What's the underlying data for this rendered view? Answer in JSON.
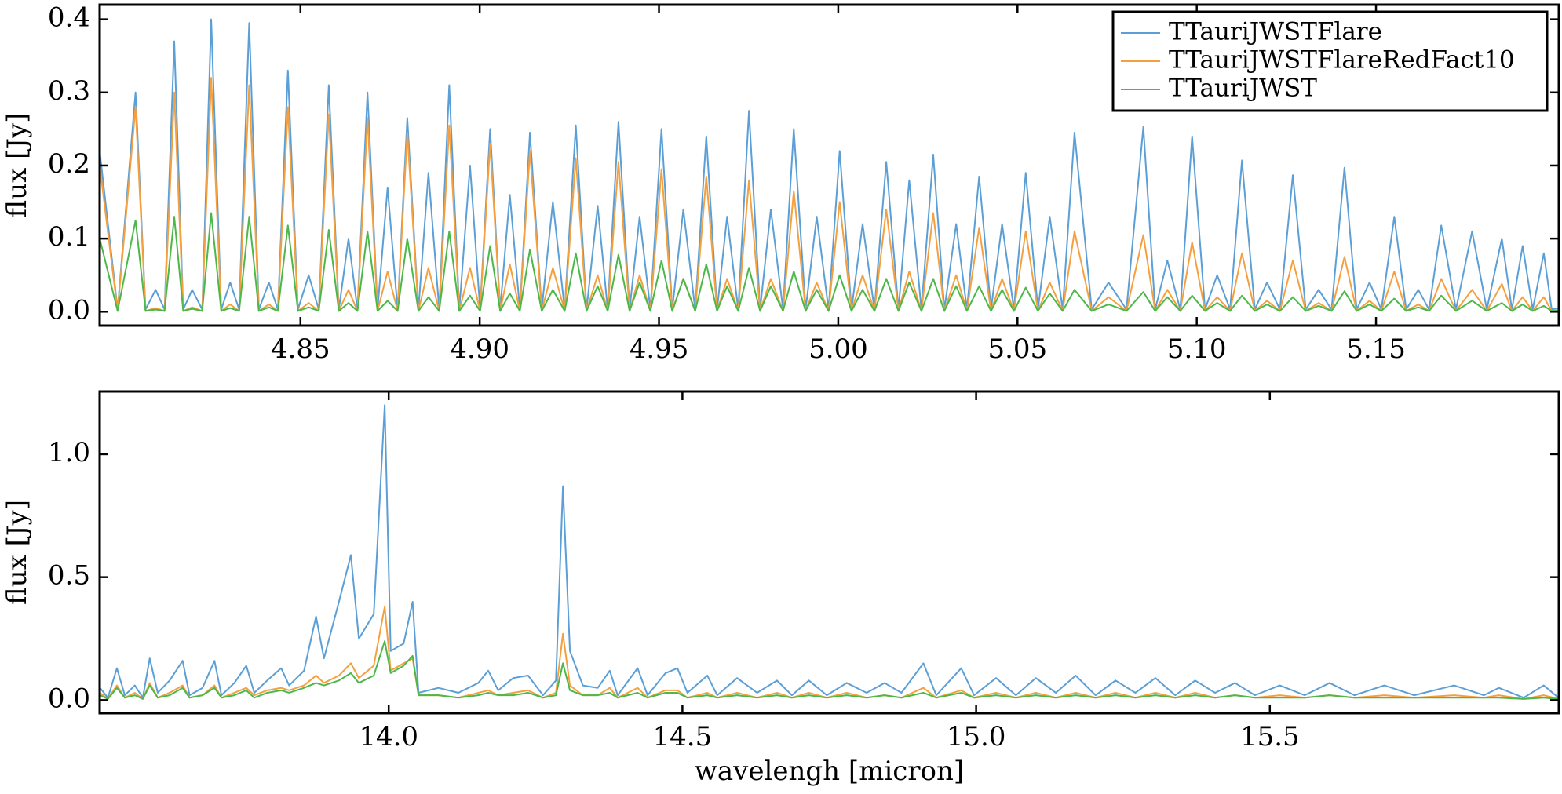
{
  "chart_data": [
    {
      "type": "line",
      "ylabel": "flux [Jy]",
      "legend": "upper right",
      "xlim": [
        4.794,
        5.201
      ],
      "ylim": [
        -0.019,
        0.42
      ],
      "xticks": [
        4.85,
        {
          "value": 4.9,
          "label": "4.90"
        },
        4.95,
        {
          "value": 5.0,
          "label": "5.00"
        },
        5.05,
        {
          "value": 5.1,
          "label": "5.10"
        },
        5.15
      ],
      "yticks": [
        {
          "value": 0,
          "label": "0.0"
        },
        0.1,
        0.2,
        0.3,
        0.4
      ],
      "x": [
        4.794,
        4.799,
        4.804,
        4.8068,
        4.8096,
        4.8121,
        4.8148,
        4.8173,
        4.8198,
        4.8226,
        4.8251,
        4.8279,
        4.8304,
        4.8329,
        4.8357,
        4.8384,
        4.8412,
        4.8437,
        4.8465,
        4.8493,
        4.8523,
        4.8551,
        4.8579,
        4.8607,
        4.8634,
        4.8659,
        4.8687,
        4.8715,
        4.8743,
        4.8771,
        4.8798,
        4.8829,
        4.8857,
        4.8887,
        4.8915,
        4.8943,
        4.8973,
        4.9001,
        4.9029,
        4.9057,
        4.9084,
        4.9112,
        4.914,
        4.9173,
        4.9204,
        4.9237,
        4.9268,
        4.9298,
        4.9329,
        4.9357,
        4.9387,
        4.9418,
        4.9446,
        4.9476,
        4.9507,
        4.9537,
        4.9568,
        4.9601,
        4.9632,
        4.9662,
        4.969,
        4.9721,
        4.9751,
        4.9782,
        4.9812,
        4.9846,
        4.9876,
        4.9909,
        4.994,
        4.9973,
        5.0004,
        5.0037,
        5.0068,
        5.0101,
        5.0134,
        5.0168,
        5.0198,
        5.0232,
        5.0265,
        5.0296,
        5.0329,
        5.0359,
        5.0393,
        5.0426,
        5.0457,
        5.049,
        5.0523,
        5.0557,
        5.059,
        5.0626,
        5.0659,
        5.0707,
        5.0754,
        5.0804,
        5.0851,
        5.0884,
        5.0918,
        5.0954,
        5.0987,
        5.1023,
        5.1057,
        5.1093,
        5.1126,
        5.1162,
        5.1196,
        5.1232,
        5.1268,
        5.1304,
        5.134,
        5.1376,
        5.1412,
        5.1446,
        5.1482,
        5.1515,
        5.1551,
        5.1584,
        5.1618,
        5.1648,
        5.1682,
        5.1723,
        5.1768,
        5.1809,
        5.1851,
        5.1879,
        5.1909,
        5.1937,
        5.1968,
        5.199,
        5.2008
      ],
      "series": [
        {
          "name": "TTauriJWSTFlare",
          "color": "#5b9fd6",
          "values": [
            0.22,
            0.003,
            0.3,
            0.003,
            0.03,
            0.003,
            0.37,
            0.003,
            0.03,
            0.003,
            0.4,
            0.003,
            0.04,
            0.003,
            0.395,
            0.003,
            0.04,
            0.003,
            0.33,
            0.003,
            0.05,
            0.003,
            0.31,
            0.003,
            0.1,
            0.003,
            0.3,
            0.003,
            0.17,
            0.003,
            0.265,
            0.003,
            0.19,
            0.003,
            0.31,
            0.003,
            0.2,
            0.003,
            0.25,
            0.003,
            0.16,
            0.003,
            0.245,
            0.003,
            0.15,
            0.003,
            0.255,
            0.003,
            0.145,
            0.003,
            0.26,
            0.003,
            0.13,
            0.003,
            0.25,
            0.003,
            0.14,
            0.003,
            0.24,
            0.003,
            0.13,
            0.003,
            0.275,
            0.003,
            0.14,
            0.003,
            0.25,
            0.003,
            0.13,
            0.003,
            0.22,
            0.003,
            0.12,
            0.003,
            0.205,
            0.003,
            0.18,
            0.003,
            0.215,
            0.003,
            0.12,
            0.003,
            0.185,
            0.003,
            0.12,
            0.003,
            0.19,
            0.003,
            0.13,
            0.003,
            0.245,
            0.003,
            0.04,
            0.003,
            0.253,
            0.003,
            0.07,
            0.003,
            0.24,
            0.003,
            0.05,
            0.003,
            0.207,
            0.003,
            0.04,
            0.003,
            0.187,
            0.003,
            0.03,
            0.003,
            0.197,
            0.003,
            0.04,
            0.003,
            0.13,
            0.003,
            0.03,
            0.003,
            0.118,
            0.003,
            0.11,
            0.003,
            0.1,
            0.003,
            0.09,
            0.003,
            0.08,
            0.003,
            0.005
          ]
        },
        {
          "name": "TTauriJWSTFlareRedFact10",
          "color": "#f5a040",
          "values": [
            0.2,
            0.001,
            0.28,
            0.001,
            0.005,
            0.001,
            0.3,
            0.001,
            0.006,
            0.001,
            0.32,
            0.001,
            0.01,
            0.001,
            0.31,
            0.001,
            0.01,
            0.001,
            0.28,
            0.001,
            0.012,
            0.001,
            0.27,
            0.001,
            0.03,
            0.001,
            0.265,
            0.001,
            0.055,
            0.001,
            0.245,
            0.001,
            0.06,
            0.001,
            0.255,
            0.001,
            0.06,
            0.001,
            0.23,
            0.001,
            0.065,
            0.001,
            0.22,
            0.001,
            0.06,
            0.001,
            0.21,
            0.001,
            0.05,
            0.001,
            0.205,
            0.001,
            0.05,
            0.001,
            0.195,
            0.001,
            0.045,
            0.001,
            0.185,
            0.001,
            0.045,
            0.001,
            0.18,
            0.001,
            0.045,
            0.001,
            0.165,
            0.001,
            0.04,
            0.001,
            0.15,
            0.001,
            0.05,
            0.001,
            0.14,
            0.001,
            0.055,
            0.001,
            0.135,
            0.001,
            0.05,
            0.001,
            0.115,
            0.001,
            0.045,
            0.001,
            0.11,
            0.001,
            0.04,
            0.001,
            0.11,
            0.001,
            0.02,
            0.001,
            0.105,
            0.001,
            0.03,
            0.001,
            0.095,
            0.001,
            0.02,
            0.001,
            0.08,
            0.001,
            0.015,
            0.001,
            0.07,
            0.001,
            0.012,
            0.001,
            0.075,
            0.001,
            0.015,
            0.001,
            0.055,
            0.001,
            0.01,
            0.001,
            0.045,
            0.001,
            0.03,
            0.001,
            0.038,
            0.001,
            0.02,
            0.001,
            0.02,
            0.001,
            0.002
          ]
        },
        {
          "name": "TTauriJWST",
          "color": "#4cb84a",
          "values": [
            0.1,
            0.001,
            0.125,
            0.001,
            0.003,
            0.001,
            0.13,
            0.001,
            0.004,
            0.001,
            0.135,
            0.001,
            0.005,
            0.001,
            0.13,
            0.001,
            0.006,
            0.001,
            0.118,
            0.001,
            0.006,
            0.001,
            0.112,
            0.001,
            0.012,
            0.001,
            0.11,
            0.001,
            0.015,
            0.001,
            0.1,
            0.001,
            0.02,
            0.001,
            0.11,
            0.001,
            0.022,
            0.001,
            0.09,
            0.001,
            0.025,
            0.001,
            0.085,
            0.001,
            0.03,
            0.001,
            0.08,
            0.001,
            0.035,
            0.001,
            0.078,
            0.001,
            0.04,
            0.001,
            0.07,
            0.001,
            0.045,
            0.001,
            0.065,
            0.001,
            0.035,
            0.001,
            0.06,
            0.001,
            0.035,
            0.001,
            0.055,
            0.001,
            0.03,
            0.001,
            0.05,
            0.001,
            0.03,
            0.001,
            0.045,
            0.001,
            0.04,
            0.001,
            0.045,
            0.001,
            0.035,
            0.001,
            0.035,
            0.001,
            0.03,
            0.001,
            0.033,
            0.001,
            0.025,
            0.001,
            0.03,
            0.001,
            0.01,
            0.001,
            0.027,
            0.001,
            0.02,
            0.001,
            0.022,
            0.001,
            0.012,
            0.001,
            0.022,
            0.001,
            0.01,
            0.001,
            0.02,
            0.001,
            0.008,
            0.001,
            0.028,
            0.001,
            0.01,
            0.001,
            0.018,
            0.001,
            0.006,
            0.001,
            0.022,
            0.001,
            0.015,
            0.001,
            0.012,
            0.001,
            0.01,
            0.001,
            0.008,
            0.001,
            0.002
          ]
        }
      ]
    },
    {
      "type": "line",
      "ylabel": "flux [Jy]",
      "xlabel": "wavelengh [micron]",
      "xlim": [
        13.508,
        15.992
      ],
      "ylim": [
        -0.053,
        1.255
      ],
      "xticks": [
        {
          "value": 14,
          "label": "14.0"
        },
        14.5,
        {
          "value": 15,
          "label": "15.0"
        },
        15.5
      ],
      "yticks": [
        {
          "value": 0,
          "label": "0.0"
        },
        0.5,
        {
          "value": 1,
          "label": "1.0"
        }
      ],
      "x": [
        13.5085,
        13.522,
        13.5373,
        13.5508,
        13.5678,
        13.5814,
        13.5932,
        13.6068,
        13.6271,
        13.6492,
        13.661,
        13.6831,
        13.7034,
        13.7153,
        13.7373,
        13.7576,
        13.7712,
        13.7932,
        13.8169,
        13.8305,
        13.8559,
        13.8763,
        13.8898,
        13.9153,
        13.9356,
        13.9492,
        13.9746,
        13.9932,
        14.0034,
        14.0254,
        14.0407,
        14.0508,
        14.0847,
        14.1186,
        14.1525,
        14.1695,
        14.1864,
        14.2119,
        14.2373,
        14.2627,
        14.2847,
        14.2966,
        14.3085,
        14.3305,
        14.3559,
        14.3763,
        14.3898,
        14.4237,
        14.4407,
        14.4712,
        14.4915,
        14.5085,
        14.5424,
        14.5593,
        14.5932,
        14.6271,
        14.661,
        14.6864,
        14.7153,
        14.7458,
        14.7797,
        14.8136,
        14.8441,
        14.8729,
        14.9102,
        14.9322,
        14.9746,
        14.9966,
        15.0339,
        15.0678,
        15.1017,
        15.1356,
        15.1695,
        15.2034,
        15.2373,
        15.2712,
        15.3051,
        15.339,
        15.3729,
        15.4068,
        15.4407,
        15.4746,
        15.5169,
        15.5593,
        15.6017,
        15.6441,
        15.6949,
        15.7458,
        15.8136,
        15.8644,
        15.8898,
        15.9322,
        15.9661,
        15.9915
      ],
      "series": [
        {
          "color": "#5b9fd6",
          "values": [
            0.05,
            0.01,
            0.13,
            0.02,
            0.06,
            0.01,
            0.17,
            0.03,
            0.08,
            0.16,
            0.02,
            0.05,
            0.16,
            0.02,
            0.07,
            0.14,
            0.03,
            0.08,
            0.13,
            0.06,
            0.12,
            0.34,
            0.17,
            0.4,
            0.59,
            0.25,
            0.35,
            1.2,
            0.2,
            0.23,
            0.4,
            0.03,
            0.05,
            0.03,
            0.07,
            0.12,
            0.04,
            0.09,
            0.1,
            0.02,
            0.08,
            0.87,
            0.2,
            0.06,
            0.05,
            0.12,
            0.02,
            0.13,
            0.02,
            0.11,
            0.13,
            0.03,
            0.1,
            0.02,
            0.09,
            0.03,
            0.08,
            0.02,
            0.08,
            0.02,
            0.07,
            0.03,
            0.07,
            0.03,
            0.15,
            0.02,
            0.13,
            0.02,
            0.09,
            0.02,
            0.09,
            0.03,
            0.1,
            0.02,
            0.08,
            0.03,
            0.09,
            0.02,
            0.08,
            0.03,
            0.07,
            0.02,
            0.06,
            0.02,
            0.07,
            0.02,
            0.06,
            0.02,
            0.06,
            0.02,
            0.05,
            0.01,
            0.06,
            0.01
          ]
        },
        {
          "color": "#f5a040",
          "values": [
            0.03,
            0.005,
            0.06,
            0.01,
            0.03,
            0.005,
            0.07,
            0.01,
            0.03,
            0.06,
            0.01,
            0.02,
            0.06,
            0.01,
            0.03,
            0.05,
            0.02,
            0.04,
            0.05,
            0.04,
            0.06,
            0.1,
            0.07,
            0.1,
            0.15,
            0.09,
            0.14,
            0.38,
            0.12,
            0.15,
            0.17,
            0.02,
            0.02,
            0.01,
            0.03,
            0.04,
            0.02,
            0.03,
            0.04,
            0.01,
            0.03,
            0.27,
            0.06,
            0.02,
            0.02,
            0.05,
            0.01,
            0.05,
            0.01,
            0.04,
            0.04,
            0.01,
            0.03,
            0.01,
            0.03,
            0.01,
            0.03,
            0.01,
            0.03,
            0.01,
            0.03,
            0.01,
            0.02,
            0.01,
            0.05,
            0.01,
            0.04,
            0.01,
            0.03,
            0.01,
            0.03,
            0.01,
            0.03,
            0.01,
            0.03,
            0.01,
            0.03,
            0.01,
            0.03,
            0.01,
            0.02,
            0.01,
            0.02,
            0.01,
            0.02,
            0.01,
            0.02,
            0.01,
            0.02,
            0.01,
            0.02,
            0.005,
            0.02,
            0.005
          ]
        },
        {
          "color": "#4cb84a",
          "values": [
            0.02,
            0.005,
            0.05,
            0.01,
            0.02,
            0.005,
            0.06,
            0.01,
            0.02,
            0.05,
            0.01,
            0.02,
            0.05,
            0.01,
            0.02,
            0.04,
            0.01,
            0.03,
            0.04,
            0.03,
            0.05,
            0.07,
            0.06,
            0.08,
            0.11,
            0.07,
            0.1,
            0.24,
            0.11,
            0.14,
            0.18,
            0.02,
            0.02,
            0.01,
            0.02,
            0.03,
            0.02,
            0.02,
            0.03,
            0.01,
            0.02,
            0.15,
            0.04,
            0.02,
            0.02,
            0.03,
            0.01,
            0.03,
            0.01,
            0.03,
            0.03,
            0.01,
            0.02,
            0.01,
            0.02,
            0.01,
            0.02,
            0.01,
            0.02,
            0.01,
            0.02,
            0.01,
            0.02,
            0.01,
            0.03,
            0.01,
            0.03,
            0.01,
            0.02,
            0.01,
            0.02,
            0.01,
            0.02,
            0.01,
            0.02,
            0.01,
            0.02,
            0.01,
            0.02,
            0.01,
            0.02,
            0.01,
            0.01,
            0.01,
            0.02,
            0.01,
            0.01,
            0.01,
            0.01,
            0.01,
            0.01,
            0.005,
            0.01,
            0.005
          ]
        }
      ]
    }
  ]
}
